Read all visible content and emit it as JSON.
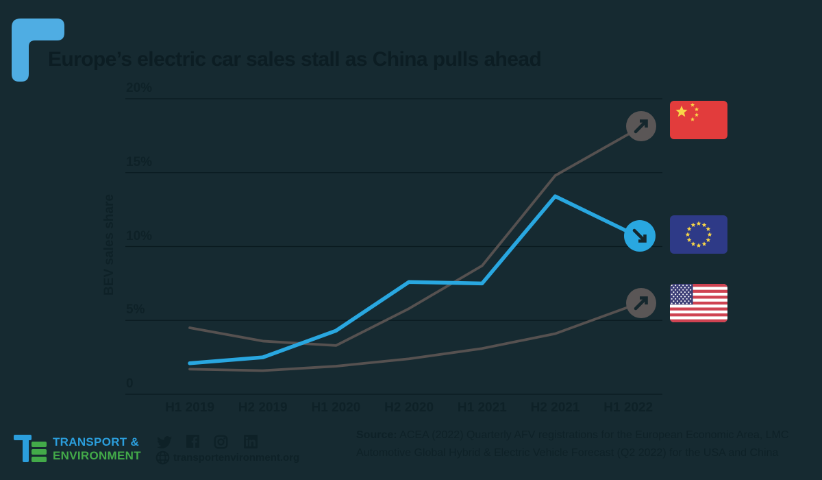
{
  "title": "Europe’s electric car sales stall as China pulls ahead",
  "chart_data": {
    "type": "line",
    "title": "Europe’s electric car sales stall as China pulls ahead",
    "xlabel": "",
    "ylabel": "BEV sales share",
    "categories": [
      "H1 2019",
      "H2 2019",
      "H1 2020",
      "H2 2020",
      "H1 2021",
      "H2 2021",
      "H1 2022"
    ],
    "yticks": [
      {
        "label": "20%",
        "value": 20
      },
      {
        "label": "15%",
        "value": 15
      },
      {
        "label": "10%",
        "value": 10
      },
      {
        "label": "5%",
        "value": 5
      },
      {
        "label": "0",
        "value": 0
      }
    ],
    "ylim": [
      0,
      21
    ],
    "grid": "horizontal",
    "legend": "flag icons at line ends (China top, EU middle, USA bottom)",
    "series": [
      {
        "name": "China",
        "color": "#565150",
        "trend": "up",
        "values": [
          4.5,
          3.6,
          3.3,
          5.8,
          8.7,
          14.8,
          17.6
        ]
      },
      {
        "name": "EU",
        "color": "#29a7e0",
        "trend": "down",
        "values": [
          2.1,
          2.5,
          4.3,
          7.6,
          7.5,
          13.4,
          11.0
        ]
      },
      {
        "name": "USA",
        "color": "#565150",
        "trend": "up",
        "values": [
          1.7,
          1.6,
          1.9,
          2.4,
          3.1,
          4.1,
          5.9
        ]
      }
    ]
  },
  "footer": {
    "logo_line1": "TRANSPORT &",
    "logo_line2": "ENVIRONMENT",
    "website": "transportenvironment.org",
    "source_label": "Source:",
    "source_lines": [
      "ACEA (2022) Quarterly AFV registrations for the European Economic Area, LMC",
      "Automotive Global Hybrid & Electric Vehicle Forecast (Q2 2022) for the USA and China"
    ],
    "social_icons": [
      "twitter-icon",
      "facebook-icon",
      "instagram-icon",
      "linkedin-icon"
    ]
  },
  "colors": {
    "background": "#162a31",
    "ink": "#0e2127",
    "gridline": "#0a1b20",
    "accent_blue": "#29a7e0",
    "line_gray": "#565150",
    "badge_gray": "#5a5656",
    "corner_mark_blue": "#4fade3",
    "logo_blue": "#2b9edc",
    "logo_green": "#43aa49",
    "china_flag_red": "#e23c3c",
    "flag_star_gold": "#f8d648",
    "eu_flag_navy": "#2e3a87",
    "us_flag_red": "#cf4352",
    "us_flag_navy": "#3d3f77"
  }
}
